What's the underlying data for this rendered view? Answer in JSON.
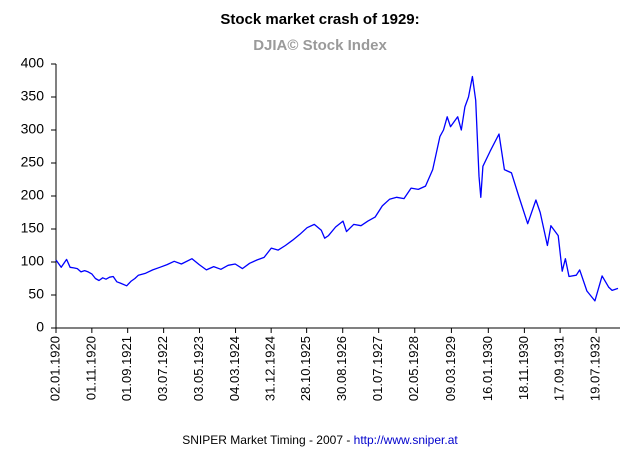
{
  "chart_data": {
    "type": "line",
    "title": "Stock market crash of 1929:",
    "subtitle": "DJIA© Stock Index",
    "footer": "SNIPER Market Timing - 2007 - ",
    "footer_link": "http://www.sniper.at",
    "color": "#0000ff",
    "x": [
      "02.01.1920",
      "15.02.1920",
      "01.04.1920",
      "01.05.1920",
      "01.06.1920",
      "01.07.1920",
      "01.08.1920",
      "01.09.1920",
      "01.10.1920",
      "01.11.1920",
      "01.12.1920",
      "01.01.1921",
      "01.02.1921",
      "01.03.1921",
      "01.04.1921",
      "01.05.1921",
      "01.06.1921",
      "01.07.1921",
      "24.08.1921",
      "01.10.1921",
      "01.11.1921",
      "01.12.1921",
      "01.02.1922",
      "01.04.1922",
      "01.06.1922",
      "01.08.1922",
      "01.10.1922",
      "01.12.1922",
      "01.03.1923",
      "01.05.1923",
      "01.07.1923",
      "01.09.1923",
      "01.11.1923",
      "01.01.1924",
      "01.03.1924",
      "01.05.1924",
      "01.07.1924",
      "01.09.1924",
      "01.11.1924",
      "01.01.1925",
      "01.03.1925",
      "01.05.1925",
      "01.07.1925",
      "01.09.1925",
      "01.11.1925",
      "01.01.1926",
      "01.03.1926",
      "30.03.1926",
      "01.05.1926",
      "01.07.1926",
      "01.09.1926",
      "01.10.1926",
      "01.12.1926",
      "01.02.1927",
      "01.04.1927",
      "01.06.1927",
      "01.08.1927",
      "01.10.1927",
      "01.12.1927",
      "01.02.1928",
      "01.04.1928",
      "01.06.1928",
      "01.08.1928",
      "01.10.1928",
      "01.12.1928",
      "01.01.1929",
      "01.02.1929",
      "01.03.1929",
      "01.05.1929",
      "01.06.1929",
      "01.07.1929",
      "01.08.1929",
      "03.09.1929",
      "01.10.1929",
      "29.10.1929",
      "13.11.1929",
      "01.12.1929",
      "01.02.1930",
      "17.04.1930",
      "01.06.1930",
      "01.08.1930",
      "01.10.1930",
      "16.12.1930",
      "24.02.1931",
      "01.04.1931",
      "01.06.1931",
      "01.07.1931",
      "01.09.1931",
      "05.10.1931",
      "01.11.1931",
      "01.12.1931",
      "01.02.1932",
      "01.03.1932",
      "01.05.1932",
      "08.07.1932",
      "07.09.1932",
      "01.11.1932",
      "01.12.1932",
      "20.01.1933"
    ],
    "values": [
      103,
      92,
      104,
      92,
      91,
      90,
      85,
      87,
      85,
      82,
      75,
      72,
      76,
      74,
      77,
      78,
      70,
      68,
      64,
      71,
      75,
      80,
      83,
      88,
      92,
      96,
      101,
      97,
      105,
      96,
      88,
      93,
      89,
      95,
      97,
      90,
      98,
      103,
      107,
      121,
      118,
      125,
      133,
      142,
      152,
      157,
      148,
      136,
      140,
      153,
      162,
      146,
      157,
      155,
      162,
      168,
      185,
      195,
      198,
      196,
      212,
      210,
      215,
      240,
      290,
      300,
      320,
      305,
      320,
      300,
      335,
      350,
      381,
      345,
      230,
      198,
      245,
      268,
      294,
      240,
      235,
      200,
      158,
      194,
      175,
      125,
      155,
      140,
      86,
      105,
      78,
      80,
      88,
      56,
      41,
      79,
      62,
      57,
      60
    ],
    "xlim": [
      "02.01.1920",
      "20.01.1933"
    ],
    "xticks": [
      "02.01.1920",
      "01.11.1920",
      "01.09.1921",
      "03.07.1922",
      "03.05.1923",
      "04.03.1924",
      "31.12.1924",
      "28.10.1925",
      "30.08.1926",
      "01.07.1927",
      "02.05.1928",
      "09.03.1929",
      "16.01.1930",
      "18.11.1930",
      "17.09.1931",
      "19.07.1932"
    ],
    "ylim": [
      0,
      400
    ],
    "yticks": [
      0,
      50,
      100,
      150,
      200,
      250,
      300,
      350,
      400
    ]
  }
}
